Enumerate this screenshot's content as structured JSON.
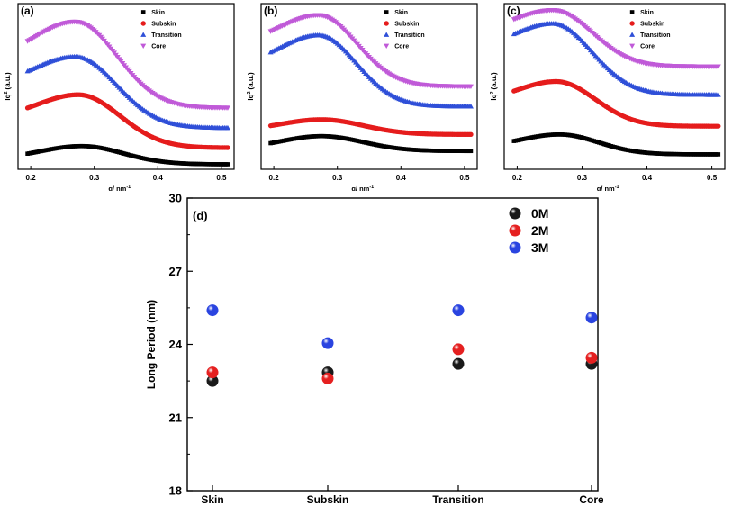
{
  "colors": {
    "skin": "#000000",
    "subskin": "#e51c1c",
    "transition": "#2f4fd8",
    "core": "#c05ad8",
    "sphere_black": "#1a1a1a",
    "sphere_red": "#e52020",
    "sphere_blue": "#2a44e0"
  },
  "chart_data": [
    {
      "id": "a",
      "panel_label": "(a)",
      "type": "line",
      "xlabel": "q/ nm",
      "xlabel_exp": "-1",
      "ylabel": "Iq",
      "ylabel_exp": "2",
      "ylabel_unit": "(a.u.)",
      "xlim": [
        0.18,
        0.52
      ],
      "ylim": [
        0,
        10
      ],
      "xticks": [
        "0.2",
        "0.3",
        "0.4",
        "0.5"
      ],
      "xtick_values": [
        0.2,
        0.3,
        0.4,
        0.5
      ],
      "legend": [
        "Skin",
        "Subskin",
        "Transition",
        "Core"
      ],
      "series": [
        {
          "name": "Skin",
          "marker": "square",
          "base": 0.6,
          "peak": 1.4,
          "tail": 0.3,
          "peak_q": 0.28,
          "width": 0.065
        },
        {
          "name": "Subskin",
          "marker": "circle",
          "base": 3.0,
          "peak": 4.5,
          "tail": 1.3,
          "peak_q": 0.275,
          "width": 0.065
        },
        {
          "name": "Transition",
          "marker": "triangle-up",
          "base": 5.0,
          "peak": 6.8,
          "tail": 2.5,
          "peak_q": 0.27,
          "width": 0.065
        },
        {
          "name": "Core",
          "marker": "triangle-down",
          "base": 6.5,
          "peak": 8.9,
          "tail": 3.7,
          "peak_q": 0.27,
          "width": 0.065
        }
      ]
    },
    {
      "id": "b",
      "panel_label": "(b)",
      "type": "line",
      "xlabel": "q/ nm",
      "xlabel_exp": "-1",
      "ylabel": "Iq",
      "ylabel_exp": "2",
      "ylabel_unit": "(a.u.)",
      "xlim": [
        0.18,
        0.52
      ],
      "ylim": [
        0,
        10
      ],
      "xticks": [
        "0.2",
        "0.3",
        "0.4",
        "0.5"
      ],
      "xtick_values": [
        0.2,
        0.3,
        0.4,
        0.5
      ],
      "legend": [
        "Skin",
        "Subskin",
        "Transition",
        "Core"
      ],
      "series": [
        {
          "name": "Skin",
          "marker": "square",
          "base": 1.2,
          "peak": 2.0,
          "tail": 1.1,
          "peak_q": 0.275,
          "width": 0.065
        },
        {
          "name": "Subskin",
          "marker": "circle",
          "base": 2.3,
          "peak": 3.0,
          "tail": 2.1,
          "peak_q": 0.275,
          "width": 0.065
        },
        {
          "name": "Transition",
          "marker": "triangle-up",
          "base": 6.2,
          "peak": 8.1,
          "tail": 3.8,
          "peak_q": 0.27,
          "width": 0.06
        },
        {
          "name": "Core",
          "marker": "triangle-down",
          "base": 7.5,
          "peak": 9.3,
          "tail": 5.0,
          "peak_q": 0.27,
          "width": 0.06
        }
      ]
    },
    {
      "id": "c",
      "panel_label": "(c)",
      "type": "line",
      "xlabel": "q/ nm",
      "xlabel_exp": "-1",
      "ylabel": "Iq",
      "ylabel_exp": "2",
      "ylabel_unit": "(a.u.)",
      "xlim": [
        0.18,
        0.52
      ],
      "ylim": [
        0,
        10
      ],
      "xticks": [
        "0.2",
        "0.3",
        "0.4",
        "0.5"
      ],
      "xtick_values": [
        0.2,
        0.3,
        0.4,
        0.5
      ],
      "legend": [
        "Skin",
        "Subskin",
        "Transition",
        "Core"
      ],
      "series": [
        {
          "name": "Skin",
          "marker": "square",
          "base": 1.3,
          "peak": 2.1,
          "tail": 0.9,
          "peak_q": 0.265,
          "width": 0.06
        },
        {
          "name": "Subskin",
          "marker": "circle",
          "base": 4.0,
          "peak": 5.3,
          "tail": 2.6,
          "peak_q": 0.26,
          "width": 0.06
        },
        {
          "name": "Transition",
          "marker": "triangle-up",
          "base": 7.2,
          "peak": 8.8,
          "tail": 4.5,
          "peak_q": 0.255,
          "width": 0.06
        },
        {
          "name": "Core",
          "marker": "triangle-down",
          "base": 8.2,
          "peak": 9.6,
          "tail": 6.2,
          "peak_q": 0.255,
          "width": 0.06
        }
      ]
    },
    {
      "id": "d",
      "panel_label": "(d)",
      "type": "scatter",
      "xlabel": "",
      "ylabel": "Long Period (nm)",
      "categories": [
        "Skin",
        "Subskin",
        "Transition",
        "Core"
      ],
      "ylim": [
        18,
        30
      ],
      "yticks": [
        "18",
        "21",
        "24",
        "27",
        "30"
      ],
      "ytick_values": [
        18,
        21,
        24,
        27,
        30
      ],
      "legend": [
        "0M",
        "2M",
        "3M"
      ],
      "series": [
        {
          "name": "0M",
          "values": [
            22.5,
            22.85,
            23.2,
            23.2
          ]
        },
        {
          "name": "2M",
          "values": [
            22.85,
            22.6,
            23.8,
            23.45
          ]
        },
        {
          "name": "3M",
          "values": [
            25.4,
            24.05,
            25.4,
            25.1
          ]
        }
      ]
    }
  ]
}
